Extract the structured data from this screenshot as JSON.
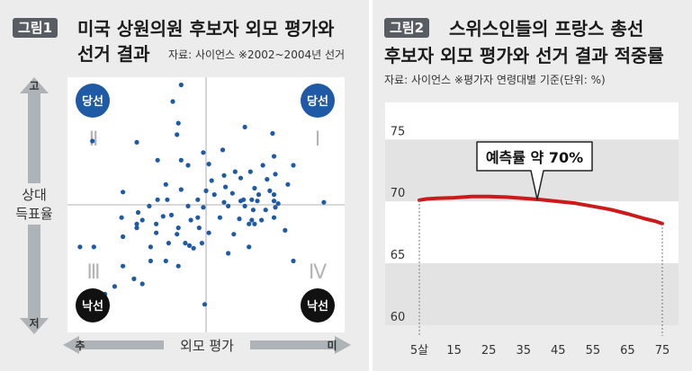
{
  "colors": {
    "panel_bg": "#ececec",
    "plot_bg": "#ffffff",
    "point": "#1f5aa6",
    "win_badge": "#1f5aa6",
    "lose_badge": "#111111",
    "line": "#cc1a1a",
    "tag_bg": "#585d63",
    "arrow_gray": "#aeb3b8",
    "band": "#e3e3e3"
  },
  "left": {
    "tag": "그림1",
    "title_line1": "미국 상원의원 후보자 외모 평가와",
    "title_line2": "선거 결과",
    "source": "자료: 사이언스 ※2002~2004년 선거",
    "y_axis_top": "고",
    "y_axis_bottom": "저",
    "y_axis_label_line1": "상대",
    "y_axis_label_line2": "득표율",
    "x_axis_left": "추",
    "x_axis_right": "미",
    "x_axis_label": "외모 평가",
    "quadrants": [
      "Ⅰ",
      "Ⅱ",
      "Ⅲ",
      "Ⅳ"
    ],
    "badge_win": "당선",
    "badge_lose": "낙선"
  },
  "right": {
    "tag": "그림2",
    "title_line1": "스위스인들의 프랑스 총선",
    "title_line2": "후보자 외모 평가와 선거 결과 적중률",
    "source": "자료: 사이언스 ※평가자 연령대별 기준(단위: %)",
    "callout": "예측률 약 70%"
  },
  "chart_data": [
    {
      "type": "scatter",
      "title": "미국 상원의원 후보자 외모 평가와 선거 결과",
      "xlabel": "외모 평가",
      "ylabel": "상대 득표율",
      "xlim": [
        -100,
        100
      ],
      "ylim": [
        -100,
        100
      ],
      "grid": false,
      "points": [
        [
          -18,
          94
        ],
        [
          -24,
          81
        ],
        [
          -82,
          50
        ],
        [
          -50,
          49
        ],
        [
          -21,
          55
        ],
        [
          -35,
          35
        ],
        [
          -18,
          35
        ],
        [
          -13,
          31
        ],
        [
          2,
          32
        ],
        [
          28,
          61
        ],
        [
          48,
          56
        ],
        [
          63,
          31
        ],
        [
          -60,
          10
        ],
        [
          -35,
          4
        ],
        [
          -18,
          12
        ],
        [
          -28,
          4
        ],
        [
          -6,
          4
        ],
        [
          -41,
          -1
        ],
        [
          -31,
          -9
        ],
        [
          -13,
          -1
        ],
        [
          -49,
          -6
        ],
        [
          -61,
          -10
        ],
        [
          -50,
          -15
        ],
        [
          -46,
          -12
        ],
        [
          -36,
          -15
        ],
        [
          -25,
          -8
        ],
        [
          -20,
          -18
        ],
        [
          -21,
          -23
        ],
        [
          -11,
          -12
        ],
        [
          -6,
          -10
        ],
        [
          -36,
          -22
        ],
        [
          -60,
          -25
        ],
        [
          -12,
          -32
        ],
        [
          -27,
          -30
        ],
        [
          -40,
          -33
        ],
        [
          -91,
          -33
        ],
        [
          -81,
          -33
        ],
        [
          -60,
          -48
        ],
        [
          -66,
          -64
        ],
        [
          -73,
          -70
        ],
        [
          -52,
          -58
        ],
        [
          -46,
          -62
        ],
        [
          -29,
          -44
        ],
        [
          -40,
          -44
        ],
        [
          -20,
          -48
        ],
        [
          -1,
          -78
        ],
        [
          -15,
          -30
        ],
        [
          2,
          -22
        ],
        [
          -5,
          -18
        ],
        [
          10,
          -10
        ],
        [
          13,
          2
        ],
        [
          14,
          14
        ],
        [
          19,
          9
        ],
        [
          21,
          26
        ],
        [
          32,
          26
        ],
        [
          35,
          13
        ],
        [
          44,
          20
        ],
        [
          50,
          24
        ],
        [
          38,
          8
        ],
        [
          25,
          3
        ],
        [
          28,
          -1
        ],
        [
          33,
          4
        ],
        [
          27,
          4
        ],
        [
          37,
          3
        ],
        [
          46,
          11
        ],
        [
          49,
          3
        ],
        [
          43,
          -4
        ],
        [
          34,
          -4
        ],
        [
          24,
          -11
        ],
        [
          20,
          -23
        ],
        [
          31,
          -15
        ],
        [
          35,
          -15
        ],
        [
          49,
          -10
        ],
        [
          59,
          16
        ],
        [
          49,
          38
        ],
        [
          41,
          31
        ],
        [
          13,
          23
        ],
        [
          25,
          21
        ],
        [
          57,
          -20
        ],
        [
          31,
          -33
        ],
        [
          16,
          -38
        ],
        [
          -2,
          41
        ],
        [
          0,
          11
        ],
        [
          4,
          19
        ],
        [
          16,
          -1
        ],
        [
          40,
          -12
        ],
        [
          63,
          -44
        ],
        [
          -29,
          16
        ],
        [
          -3,
          -30
        ],
        [
          -20,
          64
        ],
        [
          52,
          1
        ],
        [
          49,
          8
        ],
        [
          12,
          43
        ],
        [
          85,
          2
        ],
        [
          6,
          8
        ],
        [
          33,
          -12
        ],
        [
          -2,
          -2
        ],
        [
          -50,
          -18
        ],
        [
          -9,
          -34
        ],
        [
          50,
          -2
        ]
      ]
    },
    {
      "type": "line",
      "title": "스위스인들의 프랑스 총선 후보자 외모 평가와 선거 결과 적중률",
      "x_tick_labels": [
        "5살",
        "15",
        "25",
        "35",
        "45",
        "55",
        "65",
        "75"
      ],
      "x_ticks": [
        5,
        15,
        25,
        35,
        45,
        55,
        65,
        75
      ],
      "xlim": [
        5,
        75
      ],
      "y_ticks": [
        60,
        65,
        70,
        75
      ],
      "ylim": [
        60,
        78
      ],
      "grid": true,
      "series": [
        {
          "x": [
            5,
            7,
            10,
            15,
            20,
            25,
            30,
            35,
            40,
            45,
            50,
            55,
            60,
            65,
            70,
            73,
            75
          ],
          "y": [
            70.1,
            70.2,
            70.25,
            70.3,
            70.4,
            70.4,
            70.35,
            70.25,
            70.15,
            70.0,
            69.85,
            69.6,
            69.35,
            69.0,
            68.6,
            68.4,
            68.2
          ]
        }
      ]
    }
  ]
}
